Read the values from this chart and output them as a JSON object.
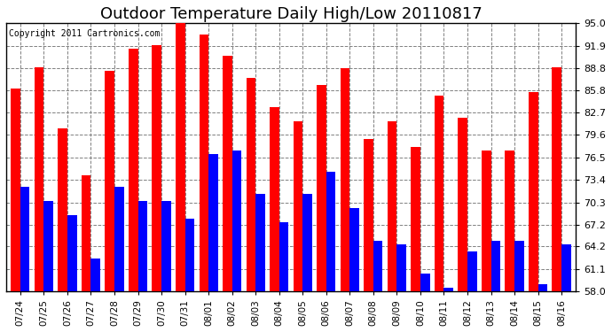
{
  "title": "Outdoor Temperature Daily High/Low 20110817",
  "copyright": "Copyright 2011 Cartronics.com",
  "dates": [
    "07/24",
    "07/25",
    "07/26",
    "07/27",
    "07/28",
    "07/29",
    "07/30",
    "07/31",
    "08/01",
    "08/02",
    "08/03",
    "08/04",
    "08/05",
    "08/06",
    "08/07",
    "08/08",
    "08/09",
    "08/10",
    "08/11",
    "08/12",
    "08/13",
    "08/14",
    "08/15",
    "08/16"
  ],
  "highs": [
    86.0,
    89.0,
    80.5,
    74.0,
    88.5,
    91.5,
    92.0,
    95.2,
    93.5,
    90.5,
    87.5,
    83.5,
    81.5,
    86.5,
    88.8,
    79.0,
    81.5,
    78.0,
    85.0,
    82.0,
    77.5,
    77.5,
    85.5,
    89.0
  ],
  "lows": [
    72.5,
    70.5,
    68.5,
    62.5,
    72.5,
    70.5,
    70.5,
    68.0,
    77.0,
    77.5,
    71.5,
    67.5,
    71.5,
    74.5,
    69.5,
    65.0,
    64.5,
    60.5,
    58.5,
    63.5,
    65.0,
    65.0,
    59.0,
    64.5
  ],
  "high_color": "#FF0000",
  "low_color": "#0000FF",
  "bg_color": "#FFFFFF",
  "yticks": [
    58.0,
    61.1,
    64.2,
    67.2,
    70.3,
    73.4,
    76.5,
    79.6,
    82.7,
    85.8,
    88.8,
    91.9,
    95.0
  ],
  "ymin": 58.0,
  "ymax": 95.0,
  "bar_width": 0.4,
  "title_fontsize": 13,
  "copyright_fontsize": 7
}
